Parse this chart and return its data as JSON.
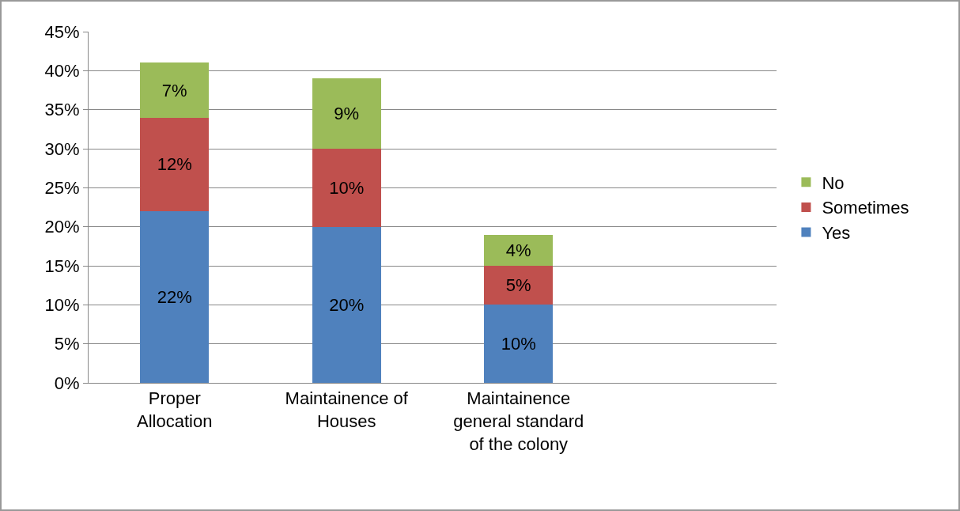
{
  "chart_data": {
    "type": "bar",
    "stacked": true,
    "categories": [
      "Proper Allocation",
      "Maintainence of Houses",
      "Maintainence general standard of the colony",
      null
    ],
    "series": [
      {
        "name": "Yes",
        "color": "#4f81bd",
        "values": [
          22,
          20,
          10,
          null
        ],
        "value_labels": [
          "22%",
          "20%",
          "10%",
          null
        ]
      },
      {
        "name": "Sometimes",
        "color": "#c0504d",
        "values": [
          12,
          10,
          5,
          null
        ],
        "value_labels": [
          "12%",
          "10%",
          "5%",
          null
        ]
      },
      {
        "name": "No",
        "color": "#9bbb59",
        "values": [
          7,
          9,
          4,
          null
        ],
        "value_labels": [
          "7%",
          "9%",
          "4%",
          null
        ]
      }
    ],
    "ylim": [
      0,
      45
    ],
    "yticks": [
      {
        "value": 0,
        "label": "0%"
      },
      {
        "value": 5,
        "label": "5%"
      },
      {
        "value": 10,
        "label": "10%"
      },
      {
        "value": 15,
        "label": "15%"
      },
      {
        "value": 20,
        "label": "20%"
      },
      {
        "value": 25,
        "label": "25%"
      },
      {
        "value": 30,
        "label": "30%"
      },
      {
        "value": 35,
        "label": "35%"
      },
      {
        "value": 40,
        "label": "40%"
      },
      {
        "value": 45,
        "label": "45%"
      }
    ],
    "grid": "y",
    "legend": "right"
  }
}
